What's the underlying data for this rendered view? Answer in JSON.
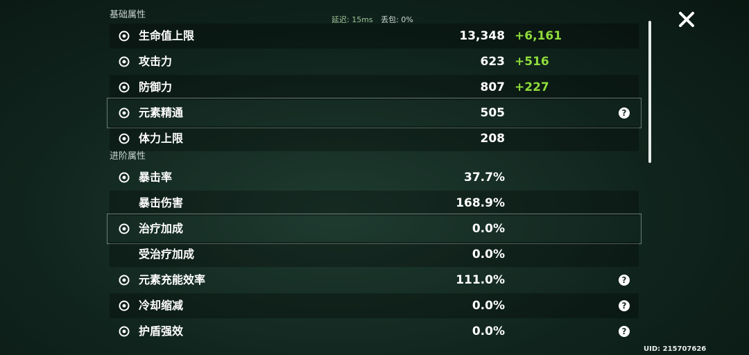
{
  "status": {
    "latency": "延迟: 15ms",
    "loss": "丢包: 0%"
  },
  "uid": "UID: 215707626",
  "sections": [
    {
      "title": "基础属性",
      "rows": [
        {
          "label": "生命值上限",
          "value": "13,348",
          "bonus": "+6,161",
          "icon": true
        },
        {
          "label": "攻击力",
          "value": "623",
          "bonus": "+516",
          "icon": true
        },
        {
          "label": "防御力",
          "value": "807",
          "bonus": "+227",
          "icon": true
        },
        {
          "label": "元素精通",
          "value": "505",
          "icon": true,
          "help": true,
          "selected": true
        },
        {
          "label": "体力上限",
          "value": "208",
          "icon": true
        }
      ]
    },
    {
      "title": "进阶属性",
      "rows": [
        {
          "label": "暴击率",
          "value": "37.7%",
          "icon": true
        },
        {
          "label": "暴击伤害",
          "value": "168.9%"
        },
        {
          "label": "治疗加成",
          "value": "0.0%",
          "icon": true,
          "selected": true
        },
        {
          "label": "受治疗加成",
          "value": "0.0%"
        },
        {
          "label": "元素充能效率",
          "value": "111.0%",
          "icon": true,
          "help": true
        },
        {
          "label": "冷却缩减",
          "value": "0.0%",
          "icon": true,
          "help": true
        },
        {
          "label": "护盾强效",
          "value": "0.0%",
          "icon": true,
          "help": true
        }
      ]
    }
  ]
}
